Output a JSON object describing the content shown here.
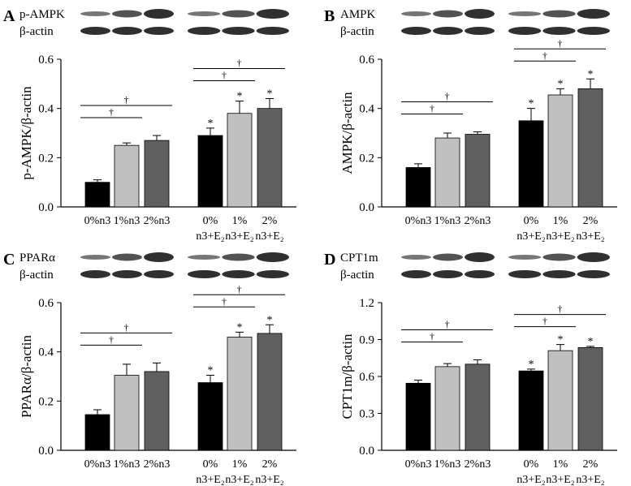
{
  "chart_data": [
    {
      "type": "bar",
      "panel": "A",
      "blot_labels": [
        "p-AMPK",
        "β-actin"
      ],
      "ylabel": "p-AMPK/β-actin",
      "categories": [
        "0%n3",
        "1%n3",
        "2%n3",
        "0% n3+E₂",
        "1% n3+E₂",
        "2% n3+E₂"
      ],
      "values": [
        0.1,
        0.25,
        0.27,
        0.29,
        0.38,
        0.4
      ],
      "errors": [
        0.01,
        0.01,
        0.02,
        0.03,
        0.05,
        0.04
      ],
      "colors": [
        "#000000",
        "#c0c0c0",
        "#606060",
        "#000000",
        "#c0c0c0",
        "#606060"
      ],
      "markers": [
        null,
        null,
        null,
        "*",
        "*",
        "*"
      ],
      "significance": [
        {
          "from": 0,
          "to": 1,
          "label": "†"
        },
        {
          "from": 0,
          "to": 2,
          "label": "†"
        },
        {
          "from": 3,
          "to": 4,
          "label": "†"
        },
        {
          "from": 3,
          "to": 5,
          "label": "†"
        }
      ],
      "ylim": [
        0,
        0.6
      ],
      "yticks": [
        {
          "value": 0,
          "label": "0.0"
        },
        0.2,
        0.4,
        0.6
      ]
    },
    {
      "type": "bar",
      "panel": "B",
      "blot_labels": [
        "AMPK",
        "β-actin"
      ],
      "ylabel": "AMPK/β-actin",
      "categories": [
        "0%n3",
        "1%n3",
        "2%n3",
        "0% n3+E₂",
        "1% n3+E₂",
        "2% n3+E₂"
      ],
      "values": [
        0.16,
        0.28,
        0.295,
        0.35,
        0.455,
        0.48
      ],
      "errors": [
        0.015,
        0.02,
        0.01,
        0.05,
        0.025,
        0.04
      ],
      "colors": [
        "#000000",
        "#c0c0c0",
        "#606060",
        "#000000",
        "#c0c0c0",
        "#606060"
      ],
      "markers": [
        null,
        null,
        null,
        "*",
        "*",
        "*"
      ],
      "significance": [
        {
          "from": 0,
          "to": 1,
          "label": "†"
        },
        {
          "from": 0,
          "to": 2,
          "label": "†"
        },
        {
          "from": 3,
          "to": 4,
          "label": "†"
        },
        {
          "from": 3,
          "to": 5,
          "label": "†"
        }
      ],
      "ylim": [
        0,
        0.6
      ],
      "yticks": [
        {
          "value": 0,
          "label": "0.0"
        },
        0.2,
        0.4,
        0.6
      ]
    },
    {
      "type": "bar",
      "panel": "C",
      "blot_labels": [
        "PPARα",
        "β-actin"
      ],
      "ylabel": "PPARα/β-actin",
      "categories": [
        "0%n3",
        "1%n3",
        "2%n3",
        "0% n3+E₂",
        "1% n3+E₂",
        "2% n3+E₂"
      ],
      "values": [
        0.145,
        0.305,
        0.32,
        0.275,
        0.46,
        0.475
      ],
      "errors": [
        0.02,
        0.045,
        0.035,
        0.03,
        0.02,
        0.035
      ],
      "colors": [
        "#000000",
        "#c0c0c0",
        "#606060",
        "#000000",
        "#c0c0c0",
        "#606060"
      ],
      "markers": [
        null,
        null,
        null,
        "*",
        "*",
        "*"
      ],
      "significance": [
        {
          "from": 0,
          "to": 1,
          "label": "†"
        },
        {
          "from": 0,
          "to": 2,
          "label": "†"
        },
        {
          "from": 3,
          "to": 4,
          "label": "†"
        },
        {
          "from": 3,
          "to": 5,
          "label": "†"
        }
      ],
      "ylim": [
        0,
        0.6
      ],
      "yticks": [
        {
          "value": 0,
          "label": "0.0"
        },
        0.2,
        0.4,
        0.6
      ]
    },
    {
      "type": "bar",
      "panel": "D",
      "blot_labels": [
        "CPT1m",
        "β-actin"
      ],
      "ylabel": "CPT1m/β-actin",
      "categories": [
        "0%n3",
        "1%n3",
        "2%n3",
        "0% n3+E₂",
        "1% n3+E₂",
        "2% n3+E₂"
      ],
      "values": [
        0.545,
        0.68,
        0.7,
        0.645,
        0.81,
        0.835
      ],
      "errors": [
        0.025,
        0.025,
        0.035,
        0.015,
        0.05,
        0.01
      ],
      "colors": [
        "#000000",
        "#c0c0c0",
        "#606060",
        "#000000",
        "#c0c0c0",
        "#606060"
      ],
      "markers": [
        null,
        null,
        null,
        "*",
        "*",
        "*"
      ],
      "significance": [
        {
          "from": 0,
          "to": 1,
          "label": "†"
        },
        {
          "from": 0,
          "to": 2,
          "label": "†"
        },
        {
          "from": 3,
          "to": 4,
          "label": "†"
        },
        {
          "from": 3,
          "to": 5,
          "label": "†"
        }
      ],
      "ylim": [
        0,
        1.2
      ],
      "yticks": [
        {
          "value": 0,
          "label": "0.0"
        },
        0.3,
        0.6,
        0.9,
        1.2
      ]
    }
  ]
}
